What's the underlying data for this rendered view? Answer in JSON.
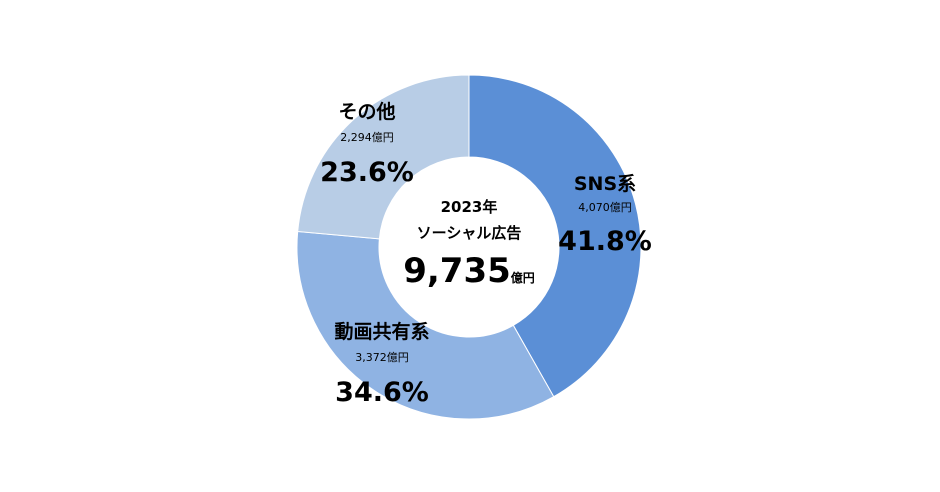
{
  "chart_data": {
    "type": "pie",
    "donut": true,
    "center": {
      "year": "2023年",
      "title": "ソーシャル広告",
      "total_value": "9,735",
      "total_unit": "億円"
    },
    "slices": [
      {
        "name": "SNS系",
        "amount": "4,070億円",
        "value": 4070,
        "percent_label": "41.8%",
        "color": "#5B8FD6"
      },
      {
        "name": "動画共有系",
        "amount": "3,372億円",
        "value": 3372,
        "percent_label": "34.6%",
        "color": "#8FB3E3"
      },
      {
        "name": "その他",
        "amount": "2,294億円",
        "value": 2294,
        "percent_label": "23.6%",
        "color": "#B8CDE6"
      }
    ]
  }
}
